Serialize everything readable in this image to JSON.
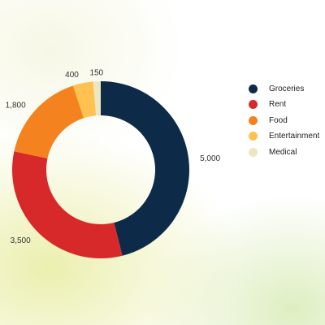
{
  "chart_data": {
    "type": "pie",
    "variant": "donut",
    "categories": [
      "Groceries",
      "Rent",
      "Food",
      "Entertainment",
      "Medical"
    ],
    "values": [
      5000,
      3500,
      1800,
      400,
      150
    ],
    "value_labels": [
      "5,000",
      "3,500",
      "1,800",
      "400",
      "150"
    ],
    "colors": [
      "#0d2b49",
      "#d7282a",
      "#f4831f",
      "#ffc14f",
      "#ece6c2"
    ],
    "legend_position": "right",
    "title": ""
  }
}
